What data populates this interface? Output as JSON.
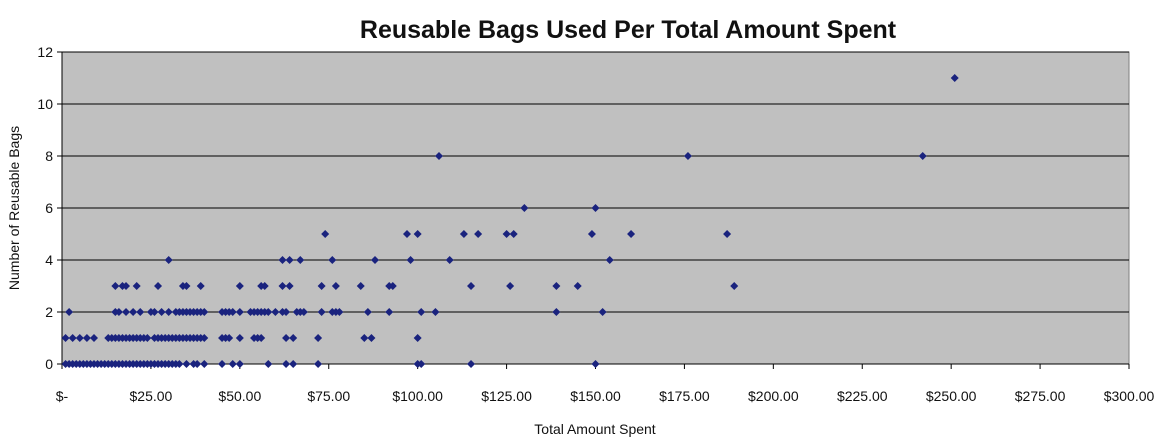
{
  "chart_data": {
    "type": "scatter",
    "title": "Reusable Bags Used Per Total Amount Spent",
    "xlabel": "Total Amount Spent",
    "ylabel": "Number of Reusable Bags",
    "xlim": [
      0,
      300
    ],
    "ylim": [
      0,
      12
    ],
    "x_ticks": [
      0,
      25,
      50,
      75,
      100,
      125,
      150,
      175,
      200,
      225,
      250,
      275,
      300
    ],
    "x_tick_labels": [
      "$-",
      "$25.00",
      "$50.00",
      "$75.00",
      "$100.00",
      "$125.00",
      "$150.00",
      "$175.00",
      "$200.00",
      "$225.00",
      "$250.00",
      "$275.00",
      "$300.00"
    ],
    "y_ticks": [
      0,
      2,
      4,
      6,
      8,
      10,
      12
    ],
    "y_tick_labels": [
      "0",
      "2",
      "4",
      "6",
      "8",
      "10",
      "12"
    ],
    "grid": "horizontal",
    "legend": "none",
    "colors": {
      "plot_background": "#c0c0c0",
      "marker": "#1a237e",
      "gridline": "#000000"
    },
    "points": [
      [
        1,
        0
      ],
      [
        2,
        0
      ],
      [
        3,
        0
      ],
      [
        4,
        0
      ],
      [
        5,
        0
      ],
      [
        6,
        0
      ],
      [
        7,
        0
      ],
      [
        8,
        0
      ],
      [
        9,
        0
      ],
      [
        10,
        0
      ],
      [
        11,
        0
      ],
      [
        12,
        0
      ],
      [
        13,
        0
      ],
      [
        14,
        0
      ],
      [
        15,
        0
      ],
      [
        16,
        0
      ],
      [
        17,
        0
      ],
      [
        18,
        0
      ],
      [
        19,
        0
      ],
      [
        20,
        0
      ],
      [
        21,
        0
      ],
      [
        22,
        0
      ],
      [
        23,
        0
      ],
      [
        24,
        0
      ],
      [
        25,
        0
      ],
      [
        26,
        0
      ],
      [
        27,
        0
      ],
      [
        28,
        0
      ],
      [
        29,
        0
      ],
      [
        30,
        0
      ],
      [
        31,
        0
      ],
      [
        32,
        0
      ],
      [
        33,
        0
      ],
      [
        35,
        0
      ],
      [
        37,
        0
      ],
      [
        38,
        0
      ],
      [
        40,
        0
      ],
      [
        45,
        0
      ],
      [
        48,
        0
      ],
      [
        50,
        0
      ],
      [
        58,
        0
      ],
      [
        63,
        0
      ],
      [
        65,
        0
      ],
      [
        72,
        0
      ],
      [
        100,
        0
      ],
      [
        101,
        0
      ],
      [
        115,
        0
      ],
      [
        150,
        0
      ],
      [
        1,
        1
      ],
      [
        3,
        1
      ],
      [
        5,
        1
      ],
      [
        7,
        1
      ],
      [
        9,
        1
      ],
      [
        13,
        1
      ],
      [
        14,
        1
      ],
      [
        15,
        1
      ],
      [
        16,
        1
      ],
      [
        17,
        1
      ],
      [
        18,
        1
      ],
      [
        19,
        1
      ],
      [
        20,
        1
      ],
      [
        21,
        1
      ],
      [
        22,
        1
      ],
      [
        23,
        1
      ],
      [
        24,
        1
      ],
      [
        26,
        1
      ],
      [
        27,
        1
      ],
      [
        28,
        1
      ],
      [
        29,
        1
      ],
      [
        30,
        1
      ],
      [
        31,
        1
      ],
      [
        32,
        1
      ],
      [
        33,
        1
      ],
      [
        34,
        1
      ],
      [
        35,
        1
      ],
      [
        36,
        1
      ],
      [
        37,
        1
      ],
      [
        38,
        1
      ],
      [
        39,
        1
      ],
      [
        40,
        1
      ],
      [
        45,
        1
      ],
      [
        46,
        1
      ],
      [
        47,
        1
      ],
      [
        50,
        1
      ],
      [
        54,
        1
      ],
      [
        55,
        1
      ],
      [
        56,
        1
      ],
      [
        63,
        1
      ],
      [
        65,
        1
      ],
      [
        72,
        1
      ],
      [
        85,
        1
      ],
      [
        87,
        1
      ],
      [
        100,
        1
      ],
      [
        2,
        2
      ],
      [
        15,
        2
      ],
      [
        16,
        2
      ],
      [
        18,
        2
      ],
      [
        20,
        2
      ],
      [
        22,
        2
      ],
      [
        25,
        2
      ],
      [
        26,
        2
      ],
      [
        28,
        2
      ],
      [
        30,
        2
      ],
      [
        32,
        2
      ],
      [
        33,
        2
      ],
      [
        34,
        2
      ],
      [
        35,
        2
      ],
      [
        36,
        2
      ],
      [
        37,
        2
      ],
      [
        38,
        2
      ],
      [
        39,
        2
      ],
      [
        40,
        2
      ],
      [
        45,
        2
      ],
      [
        46,
        2
      ],
      [
        47,
        2
      ],
      [
        48,
        2
      ],
      [
        50,
        2
      ],
      [
        53,
        2
      ],
      [
        54,
        2
      ],
      [
        55,
        2
      ],
      [
        56,
        2
      ],
      [
        57,
        2
      ],
      [
        58,
        2
      ],
      [
        60,
        2
      ],
      [
        62,
        2
      ],
      [
        63,
        2
      ],
      [
        66,
        2
      ],
      [
        67,
        2
      ],
      [
        68,
        2
      ],
      [
        73,
        2
      ],
      [
        76,
        2
      ],
      [
        77,
        2
      ],
      [
        78,
        2
      ],
      [
        86,
        2
      ],
      [
        92,
        2
      ],
      [
        101,
        2
      ],
      [
        105,
        2
      ],
      [
        139,
        2
      ],
      [
        152,
        2
      ],
      [
        15,
        3
      ],
      [
        17,
        3
      ],
      [
        18,
        3
      ],
      [
        21,
        3
      ],
      [
        27,
        3
      ],
      [
        34,
        3
      ],
      [
        35,
        3
      ],
      [
        39,
        3
      ],
      [
        50,
        3
      ],
      [
        56,
        3
      ],
      [
        57,
        3
      ],
      [
        62,
        3
      ],
      [
        64,
        3
      ],
      [
        73,
        3
      ],
      [
        77,
        3
      ],
      [
        84,
        3
      ],
      [
        92,
        3
      ],
      [
        93,
        3
      ],
      [
        115,
        3
      ],
      [
        126,
        3
      ],
      [
        139,
        3
      ],
      [
        145,
        3
      ],
      [
        189,
        3
      ],
      [
        30,
        4
      ],
      [
        62,
        4
      ],
      [
        64,
        4
      ],
      [
        67,
        4
      ],
      [
        76,
        4
      ],
      [
        88,
        4
      ],
      [
        98,
        4
      ],
      [
        109,
        4
      ],
      [
        154,
        4
      ],
      [
        74,
        5
      ],
      [
        97,
        5
      ],
      [
        100,
        5
      ],
      [
        113,
        5
      ],
      [
        117,
        5
      ],
      [
        125,
        5
      ],
      [
        127,
        5
      ],
      [
        149,
        5
      ],
      [
        160,
        5
      ],
      [
        187,
        5
      ],
      [
        130,
        6
      ],
      [
        150,
        6
      ],
      [
        106,
        8
      ],
      [
        176,
        8
      ],
      [
        242,
        8
      ],
      [
        251,
        11
      ]
    ]
  }
}
